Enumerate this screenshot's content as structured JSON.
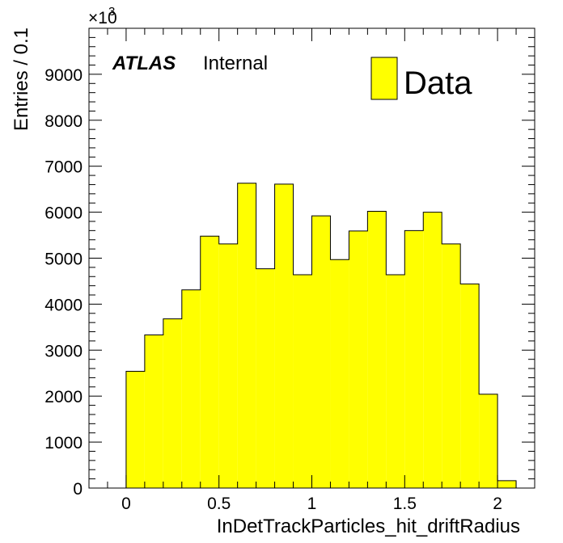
{
  "chart_data": {
    "type": "bar",
    "style": "histogram",
    "xlabel": "InDetTrackParticles_hit_driftRadius",
    "ylabel": "Entries / 0.1",
    "y_multiplier_label": "×10",
    "y_multiplier_exponent": "3",
    "xlim": [
      -0.2,
      2.2
    ],
    "ylim": [
      0,
      10000
    ],
    "x_ticks": [
      {
        "value": 0,
        "label": "0"
      },
      {
        "value": 0.5,
        "label": "0.5"
      },
      {
        "value": 1,
        "label": "1"
      },
      {
        "value": 1.5,
        "label": "1.5"
      },
      {
        "value": 2,
        "label": "2"
      }
    ],
    "y_ticks": [
      {
        "value": 0,
        "label": "0"
      },
      {
        "value": 1000,
        "label": "1000"
      },
      {
        "value": 2000,
        "label": "2000"
      },
      {
        "value": 3000,
        "label": "3000"
      },
      {
        "value": 4000,
        "label": "4000"
      },
      {
        "value": 5000,
        "label": "5000"
      },
      {
        "value": 6000,
        "label": "6000"
      },
      {
        "value": 7000,
        "label": "7000"
      },
      {
        "value": 8000,
        "label": "8000"
      },
      {
        "value": 9000,
        "label": "9000"
      }
    ],
    "bin_edges": [
      0,
      0.1,
      0.2,
      0.3,
      0.4,
      0.5,
      0.6,
      0.7,
      0.8,
      0.9,
      1.0,
      1.1,
      1.2,
      1.3,
      1.4,
      1.5,
      1.6,
      1.7,
      1.8,
      1.9,
      2.0,
      2.1
    ],
    "series": [
      {
        "name": "Data",
        "color": "#ffff00",
        "values": [
          2540,
          3330,
          3680,
          4310,
          5480,
          5310,
          6630,
          4770,
          6610,
          4640,
          5920,
          4970,
          5590,
          6020,
          4640,
          5600,
          6000,
          5310,
          4440,
          2040,
          160
        ]
      }
    ],
    "legend": {
      "position": "top-right",
      "entries": [
        "Data"
      ]
    },
    "grid": false
  },
  "labels": {
    "atlas": "ATLAS",
    "internal": "Internal"
  }
}
